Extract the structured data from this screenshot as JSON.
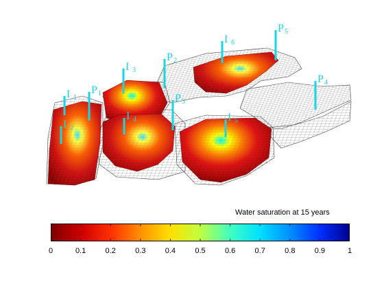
{
  "colorbar": {
    "title": "Water saturation at 15 years",
    "ticks": [
      "0",
      "0.1",
      "0.2",
      "0.3",
      "0.4",
      "0.5",
      "0.6",
      "0.7",
      "0.8",
      "0.9",
      "1"
    ],
    "colors": [
      "#800000",
      "#cc0000",
      "#ff4000",
      "#ff8000",
      "#ffc000",
      "#ffff00",
      "#80ff80",
      "#00ffff",
      "#0080ff",
      "#0000ff",
      "#00008f"
    ]
  },
  "wells": [
    {
      "letter": "I",
      "sub": "1"
    },
    {
      "letter": "I",
      "sub": "2"
    },
    {
      "letter": "I",
      "sub": "3"
    },
    {
      "letter": "I",
      "sub": "4"
    },
    {
      "letter": "I",
      "sub": "5"
    },
    {
      "letter": "I",
      "sub": "6"
    },
    {
      "letter": "P",
      "sub": "1"
    },
    {
      "letter": "P",
      "sub": "2"
    },
    {
      "letter": "P",
      "sub": "3"
    },
    {
      "letter": "P",
      "sub": "4"
    },
    {
      "letter": "P",
      "sub": "5"
    }
  ],
  "colors": {
    "well": "#19d3e6",
    "grid": "#7a7a7a",
    "background": "#ffffff"
  }
}
